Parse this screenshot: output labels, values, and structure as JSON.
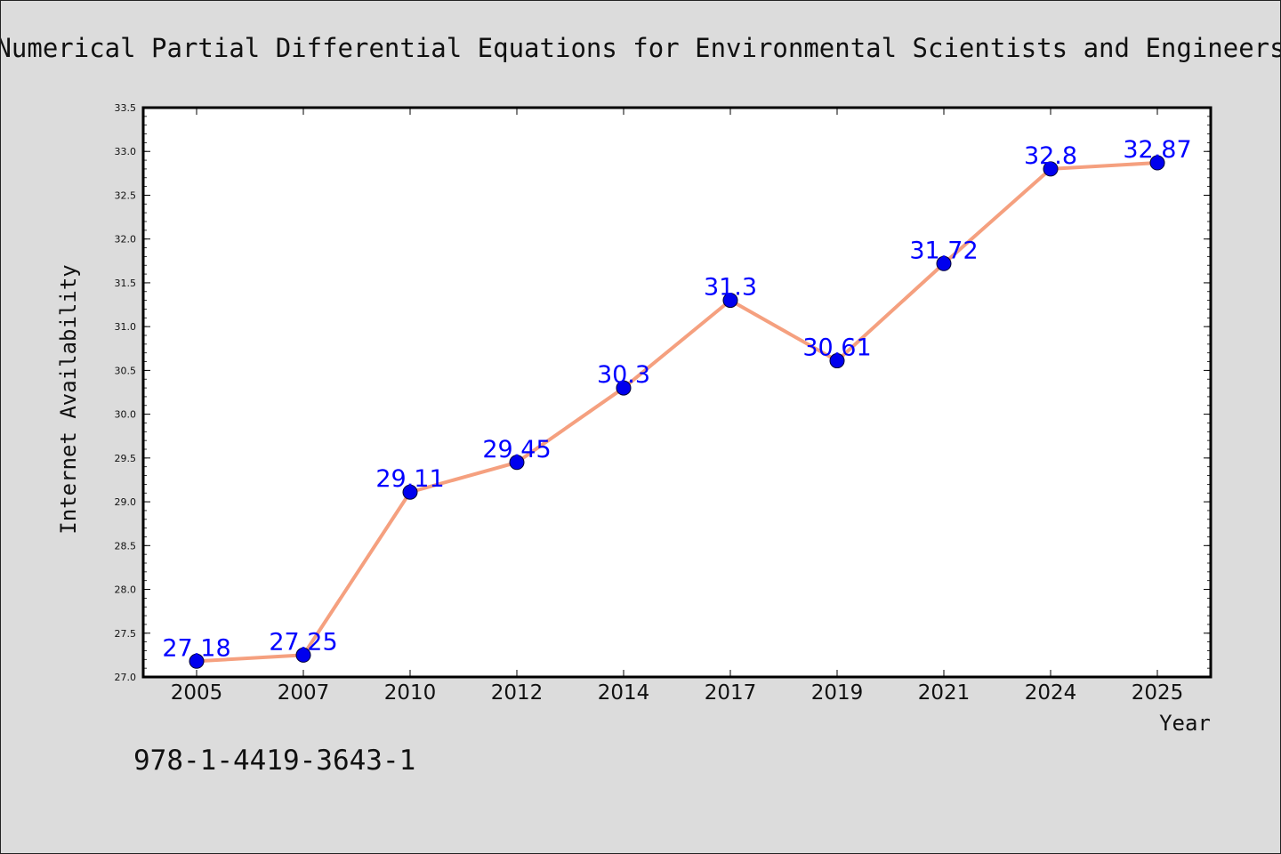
{
  "chart_data": {
    "type": "line",
    "title": "Numerical Partial Differential Equations for Environmental Scientists and Engineers",
    "xlabel": "Year",
    "ylabel": "Internet Availability",
    "categories": [
      "2005",
      "2007",
      "2010",
      "2012",
      "2014",
      "2017",
      "2019",
      "2021",
      "2024",
      "2025"
    ],
    "values": [
      27.18,
      27.25,
      29.11,
      29.45,
      30.3,
      31.3,
      30.61,
      31.72,
      32.8,
      32.87
    ],
    "data_labels": [
      "27.18",
      "27.25",
      "29.11",
      "29.45",
      "30.3",
      "31.3",
      "30.61",
      "31.72",
      "32.8",
      "32.87"
    ],
    "ylim": [
      27.0,
      33.5
    ],
    "yticks": [
      "27.0",
      "27.5",
      "28.0",
      "28.5",
      "29.0",
      "29.5",
      "30.0",
      "30.5",
      "31.0",
      "31.5",
      "32.0",
      "32.5",
      "33.0",
      "33.5"
    ],
    "grid": false,
    "colors": {
      "line": "#f5a07f",
      "marker": "#0000ee",
      "marker_edge": "#000033",
      "labels": "#0000ff",
      "background": "#dcdcdc",
      "plot_area": "#ffffff"
    }
  },
  "annotation": {
    "isbn": "978-1-4419-3643-1"
  }
}
